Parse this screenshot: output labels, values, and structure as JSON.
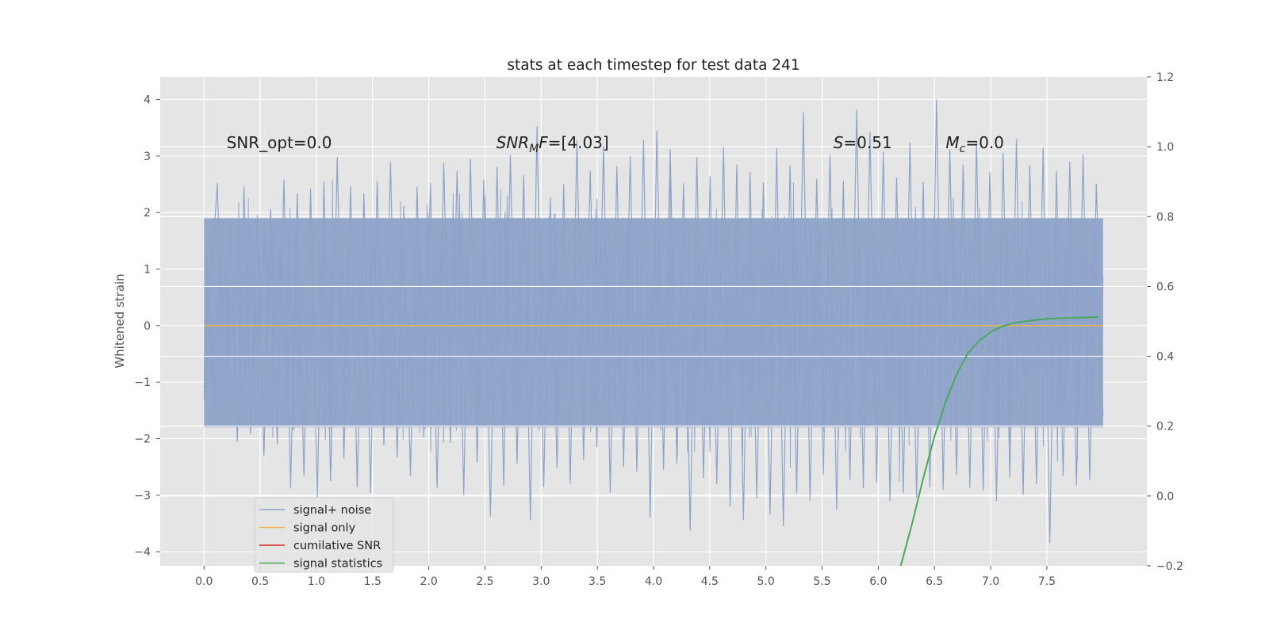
{
  "chart_data": {
    "type": "line",
    "title": "stats at each timestep for test data 241",
    "ylabel": "Whitened strain",
    "xlim": [
      -0.39,
      8.39
    ],
    "ylim": [
      -4.25,
      4.4
    ],
    "y2lim": [
      -0.2,
      1.2
    ],
    "x_ticks": [
      "0.0",
      "0.5",
      "1.0",
      "1.5",
      "2.0",
      "2.5",
      "3.0",
      "3.5",
      "4.0",
      "4.5",
      "5.0",
      "5.5",
      "6.0",
      "6.5",
      "7.0",
      "7.5"
    ],
    "x_tick_values": [
      0.0,
      0.5,
      1.0,
      1.5,
      2.0,
      2.5,
      3.0,
      3.5,
      4.0,
      4.5,
      5.0,
      5.5,
      6.0,
      6.5,
      7.0,
      7.5
    ],
    "y_ticks": [
      "−4",
      "−3",
      "−2",
      "−1",
      "0",
      "1",
      "2",
      "3",
      "4"
    ],
    "y_tick_values": [
      -4,
      -3,
      -2,
      -1,
      0,
      1,
      2,
      3,
      4
    ],
    "y2_ticks": [
      "−0.2",
      "0.0",
      "0.2",
      "0.4",
      "0.6",
      "0.8",
      "1.0",
      "1.2"
    ],
    "y2_tick_values": [
      -0.2,
      0.0,
      0.2,
      0.4,
      0.6,
      0.8,
      1.0,
      1.2
    ],
    "grid": true,
    "legend_position": "lower-left",
    "annotations": [
      {
        "text": "SNR_opt=0.0",
        "x": 0.2,
        "y": 3.25
      },
      {
        "text": "SNR_MF=[4.03]",
        "x": 2.6,
        "y": 3.25
      },
      {
        "text": "S=0.51",
        "x": 5.6,
        "y": 3.25
      },
      {
        "text": "M_c=0.0",
        "x": 6.6,
        "y": 3.25
      }
    ],
    "series": [
      {
        "name": "signal+ noise",
        "color": "#8da3c8",
        "axis": "left",
        "x_range": [
          0.0,
          8.0
        ],
        "y_range": [
          -3.85,
          4.0
        ],
        "envelope_upper": 1.9,
        "envelope_lower": -1.8,
        "values": [
          -1.1,
          0.7,
          2.52,
          -1.62,
          1.8,
          -2.06,
          2.46,
          -1.92,
          1.95,
          -2.3,
          2.06,
          -2.1,
          2.58,
          -2.88,
          2.34,
          -2.66,
          2.42,
          -3.05,
          2.55,
          -2.75,
          2.98,
          -2.35,
          2.46,
          -2.86,
          2.34,
          -2.96,
          2.56,
          -2.12,
          2.89,
          -2.33,
          2.12,
          -2.66,
          2.45,
          -1.98,
          2.52,
          -2.87,
          2.88,
          -2.08,
          2.73,
          -3.0,
          2.95,
          -2.42,
          2.58,
          -3.38,
          2.81,
          -2.84,
          3.02,
          -2.44,
          2.66,
          -3.44,
          3.53,
          -2.86,
          2.26,
          -2.52,
          2.5,
          -2.8,
          3.27,
          -2.38,
          2.74,
          -2.15,
          3.18,
          -2.96,
          2.82,
          -2.5,
          3.0,
          -2.58,
          3.28,
          -3.4,
          3.45,
          -2.55,
          3.12,
          -2.44,
          2.52,
          -3.63,
          2.98,
          -2.7,
          2.64,
          -2.8,
          3.16,
          -3.2,
          2.85,
          -3.44,
          2.72,
          -3.06,
          2.53,
          -3.35,
          3.14,
          -3.55,
          2.84,
          -2.97,
          3.78,
          -3.1,
          2.6,
          -2.64,
          3.02,
          -3.26,
          2.56,
          -2.73,
          3.82,
          -2.88,
          3.43,
          -2.78,
          3.07,
          -3.1,
          2.62,
          -2.96,
          3.24,
          -3.05,
          2.54,
          -2.86,
          4.0,
          -2.9,
          3.12,
          -2.64,
          2.85,
          -2.87,
          3.25,
          -2.92,
          2.72,
          -3.1,
          3.05,
          -2.68,
          3.3,
          -3.0,
          2.84,
          -2.8,
          3.15,
          -3.85,
          2.73,
          -2.66,
          2.9,
          -2.83,
          3.02,
          -2.74,
          2.51,
          -1.6
        ]
      },
      {
        "name": "signal only",
        "color": "#f0b54c",
        "axis": "left",
        "x": [
          0.0,
          8.0
        ],
        "values": [
          0.0,
          0.0
        ]
      },
      {
        "name": "cumilative SNR",
        "color": "#d62728",
        "axis": "right",
        "x": [],
        "values": []
      },
      {
        "name": "signal statistics",
        "color": "#4aa85b",
        "axis": "right",
        "x": [
          6.2,
          6.3,
          6.4,
          6.5,
          6.6,
          6.7,
          6.8,
          6.9,
          7.0,
          7.1,
          7.2,
          7.3,
          7.4,
          7.5,
          7.6,
          7.7,
          7.8,
          7.9,
          7.96
        ],
        "values": [
          -0.2,
          -0.08,
          0.05,
          0.17,
          0.27,
          0.35,
          0.41,
          0.445,
          0.47,
          0.485,
          0.495,
          0.5,
          0.504,
          0.507,
          0.509,
          0.51,
          0.511,
          0.512,
          0.513
        ]
      }
    ]
  }
}
